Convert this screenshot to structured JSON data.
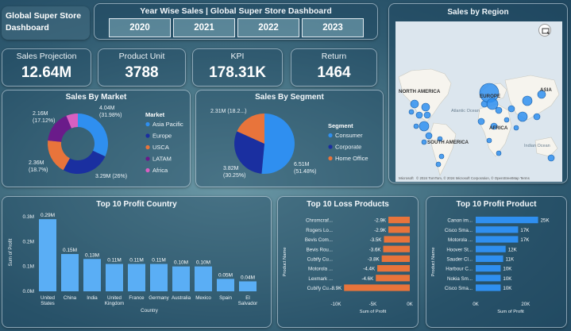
{
  "header": {
    "title": "Global Super Store Dashboard",
    "year_title": "Year Wise Sales | Global Super Store Dashboard",
    "years": [
      "2020",
      "2021",
      "2022",
      "2023"
    ]
  },
  "kpis": [
    {
      "label": "Sales Projection",
      "value": "12.64M"
    },
    {
      "label": "Product Unit",
      "value": "3788"
    },
    {
      "label": "KPI",
      "value": "178.31K"
    },
    {
      "label": "Return",
      "value": "1464"
    }
  ],
  "region_map": {
    "title": "Sales by Region",
    "labels": [
      "NORTH AMERICA",
      "EUROPE",
      "ASIA",
      "AFRICA",
      "SOUTH AMERICA",
      "Atlantic Ocean",
      "Indian Ocean"
    ],
    "attribution": "© 2024 TomTom, © 2024 Microsoft Corporation, © OpenStreetMap  Terms",
    "brand": "Microsoft",
    "icon": "focus-mode-icon"
  },
  "market_chart": {
    "title": "Sales By Market",
    "legend_title": "Market",
    "data_labels": [
      {
        "text": "4.04M\n(31.98%)"
      },
      {
        "text": "3.29M (26%)"
      },
      {
        "text": "2.36M\n(18.7%)"
      },
      {
        "text": "2.16M\n(17.12%)"
      }
    ]
  },
  "segment_chart": {
    "title": "Sales By Segment",
    "legend_title": "Segment",
    "data_labels": [
      {
        "text": "6.51M\n(51.48%)"
      },
      {
        "text": "3.82M\n(30.25%)"
      },
      {
        "text": "2.31M (18.2...)"
      }
    ]
  },
  "country_chart": {
    "title": "Top 10 Profit Country",
    "xlabel": "Country",
    "ylabel": "Sum of Profit",
    "yticks": [
      "0.0M",
      "0.1M",
      "0.2M",
      "0.3M"
    ]
  },
  "loss_chart": {
    "title": "Top 10 Loss Products",
    "xlabel": "Sum of Profit",
    "ylabel": "Product Name",
    "xticks": [
      "-10K",
      "-5K",
      "0K"
    ]
  },
  "profit_product_chart": {
    "title": "Top 10 Profit Product",
    "xlabel": "Sum of Profit",
    "ylabel": "Product Name",
    "xticks": [
      "0K",
      "20K"
    ]
  },
  "chart_data": [
    {
      "type": "pie",
      "title": "Sales By Market",
      "variant": "donut",
      "legend": "right",
      "categories": [
        "Asia Pacific",
        "Europe",
        "USCA",
        "LATAM",
        "Africa"
      ],
      "values": [
        4.04,
        3.29,
        2.36,
        2.16,
        0.79
      ],
      "colors": [
        "#2f8ff0",
        "#1a2fa0",
        "#e8743b",
        "#6a1b8a",
        "#d95fc1"
      ]
    },
    {
      "type": "pie",
      "title": "Sales By Segment",
      "legend": "right",
      "categories": [
        "Consumer",
        "Corporate",
        "Home Office"
      ],
      "values": [
        6.51,
        3.82,
        2.31
      ],
      "colors": [
        "#2f8ff0",
        "#1a2fa0",
        "#e8743b"
      ]
    },
    {
      "type": "bar",
      "title": "Top 10 Profit Country",
      "xlabel": "Country",
      "ylabel": "Sum of Profit",
      "categories": [
        "United States",
        "China",
        "India",
        "United Kingdom",
        "France",
        "Germany",
        "Australia",
        "Mexico",
        "Spain",
        "El Salvador"
      ],
      "values": [
        0.29,
        0.15,
        0.13,
        0.11,
        0.11,
        0.11,
        0.1,
        0.1,
        0.05,
        0.04
      ],
      "value_labels": [
        "0.29M",
        "0.15M",
        "0.13M",
        "0.11M",
        "0.11M",
        "0.11M",
        "0.10M",
        "0.10M",
        "0.05M",
        "0.04M"
      ],
      "ylim": [
        0,
        0.3
      ],
      "color": "#5aaef5"
    },
    {
      "type": "bar",
      "orientation": "horizontal",
      "title": "Top 10 Loss Products",
      "xlabel": "Sum of Profit",
      "ylabel": "Product Name",
      "categories": [
        "Chromcraf...",
        "Rogers Lo...",
        "Bevis Com...",
        "Bevis Rou...",
        "Cubify Cu...",
        "Motorola ...",
        "Lexmark ...",
        "Cubify Cu..."
      ],
      "values": [
        -2.9,
        -2.9,
        -3.5,
        -3.6,
        -3.8,
        -4.4,
        -4.6,
        -8.9
      ],
      "value_labels": [
        "-2.9K",
        "-2.9K",
        "-3.5K",
        "-3.6K",
        "-3.8K",
        "-4.4K",
        "-4.6K",
        "-8.9K"
      ],
      "xlim": [
        -10,
        0
      ],
      "color": "#e8743b"
    },
    {
      "type": "bar",
      "orientation": "horizontal",
      "title": "Top 10 Profit Product",
      "xlabel": "Sum of Profit",
      "ylabel": "Product Name",
      "categories": [
        "Canon im...",
        "Cisco Sma...",
        "Motorola ...",
        "Hoover St...",
        "Sauder Cl...",
        "Harbour C...",
        "Nokia Sm...",
        "Cisco Sma..."
      ],
      "values": [
        25,
        17,
        17,
        12,
        11,
        10,
        10,
        10
      ],
      "value_labels": [
        "25K",
        "17K",
        "17K",
        "12K",
        "11K",
        "10K",
        "10K",
        "10K"
      ],
      "xlim": [
        0,
        28
      ],
      "color": "#2f8ff0"
    }
  ]
}
